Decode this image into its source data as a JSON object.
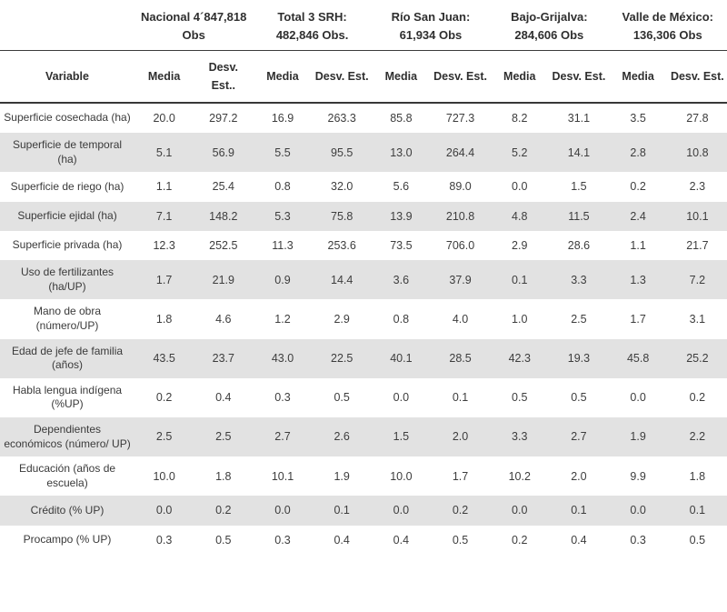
{
  "table": {
    "variable_header": "Variable",
    "groups": [
      {
        "label": "Nacional 4´847,818 Obs"
      },
      {
        "label": "Total 3 SRH: 482,846 Obs."
      },
      {
        "label": "Río San Juan: 61,934 Obs"
      },
      {
        "label": "Bajo-Grijalva: 284,606 Obs"
      },
      {
        "label": "Valle de México: 136,306 Obs"
      }
    ],
    "col_headers": [
      "Media",
      "Desv. Est..",
      "Media",
      "Desv. Est.",
      "Media",
      "Desv. Est.",
      "Media",
      "Desv. Est.",
      "Media",
      "Desv. Est."
    ],
    "rows": [
      {
        "label": "Superficie cosechada (ha)",
        "values": [
          "20.0",
          "297.2",
          "16.9",
          "263.3",
          "85.8",
          "727.3",
          "8.2",
          "31.1",
          "3.5",
          "27.8"
        ]
      },
      {
        "label": "Superficie de temporal (ha)",
        "values": [
          "5.1",
          "56.9",
          "5.5",
          "95.5",
          "13.0",
          "264.4",
          "5.2",
          "14.1",
          "2.8",
          "10.8"
        ]
      },
      {
        "label": "Superficie de riego (ha)",
        "values": [
          "1.1",
          "25.4",
          "0.8",
          "32.0",
          "5.6",
          "89.0",
          "0.0",
          "1.5",
          "0.2",
          "2.3"
        ]
      },
      {
        "label": "Superficie ejidal (ha)",
        "values": [
          "7.1",
          "148.2",
          "5.3",
          "75.8",
          "13.9",
          "210.8",
          "4.8",
          "11.5",
          "2.4",
          "10.1"
        ]
      },
      {
        "label": "Superficie privada (ha)",
        "values": [
          "12.3",
          "252.5",
          "11.3",
          "253.6",
          "73.5",
          "706.0",
          "2.9",
          "28.6",
          "1.1",
          "21.7"
        ]
      },
      {
        "label": "Uso de fertilizantes (ha/UP)",
        "values": [
          "1.7",
          "21.9",
          "0.9",
          "14.4",
          "3.6",
          "37.9",
          "0.1",
          "3.3",
          "1.3",
          "7.2"
        ]
      },
      {
        "label": "Mano de obra (número/UP)",
        "values": [
          "1.8",
          "4.6",
          "1.2",
          "2.9",
          "0.8",
          "4.0",
          "1.0",
          "2.5",
          "1.7",
          "3.1"
        ]
      },
      {
        "label": "Edad de jefe de familia (años)",
        "values": [
          "43.5",
          "23.7",
          "43.0",
          "22.5",
          "40.1",
          "28.5",
          "42.3",
          "19.3",
          "45.8",
          "25.2"
        ]
      },
      {
        "label": "Habla lengua indígena (%UP)",
        "values": [
          "0.2",
          "0.4",
          "0.3",
          "0.5",
          "0.0",
          "0.1",
          "0.5",
          "0.5",
          "0.0",
          "0.2"
        ]
      },
      {
        "label": "Dependientes económicos (número/ UP)",
        "values": [
          "2.5",
          "2.5",
          "2.7",
          "2.6",
          "1.5",
          "2.0",
          "3.3",
          "2.7",
          "1.9",
          "2.2"
        ]
      },
      {
        "label": "Educación (años de escuela)",
        "values": [
          "10.0",
          "1.8",
          "10.1",
          "1.9",
          "10.0",
          "1.7",
          "10.2",
          "2.0",
          "9.9",
          "1.8"
        ]
      },
      {
        "label": "Crédito (% UP)",
        "values": [
          "0.0",
          "0.2",
          "0.0",
          "0.1",
          "0.0",
          "0.2",
          "0.0",
          "0.1",
          "0.0",
          "0.1"
        ]
      },
      {
        "label": "Procampo (% UP)",
        "values": [
          "0.3",
          "0.5",
          "0.3",
          "0.4",
          "0.4",
          "0.5",
          "0.2",
          "0.4",
          "0.3",
          "0.5"
        ]
      }
    ]
  },
  "colors": {
    "row_shade": "#e2e2e2",
    "rule": "#3c3c3c",
    "text": "#3d3d3d"
  }
}
